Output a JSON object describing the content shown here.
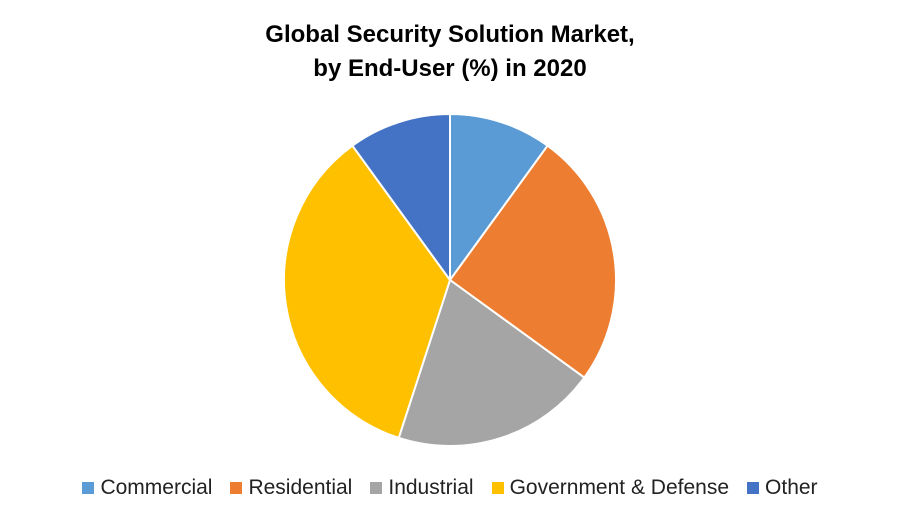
{
  "chart_data": {
    "type": "pie",
    "title_lines": [
      "Global Security Solution Market,",
      "by End-User (%) in 2020"
    ],
    "categories": [
      "Commercial",
      "Residential",
      "Industrial",
      "Government & Defense",
      "Other"
    ],
    "values": [
      10,
      25,
      20,
      35,
      10
    ],
    "colors": [
      "#5B9BD5",
      "#ED7D31",
      "#A5A5A5",
      "#FFC000",
      "#4472C4"
    ],
    "legend_position": "bottom",
    "start_angle": "12 o'clock",
    "direction": "clockwise"
  }
}
